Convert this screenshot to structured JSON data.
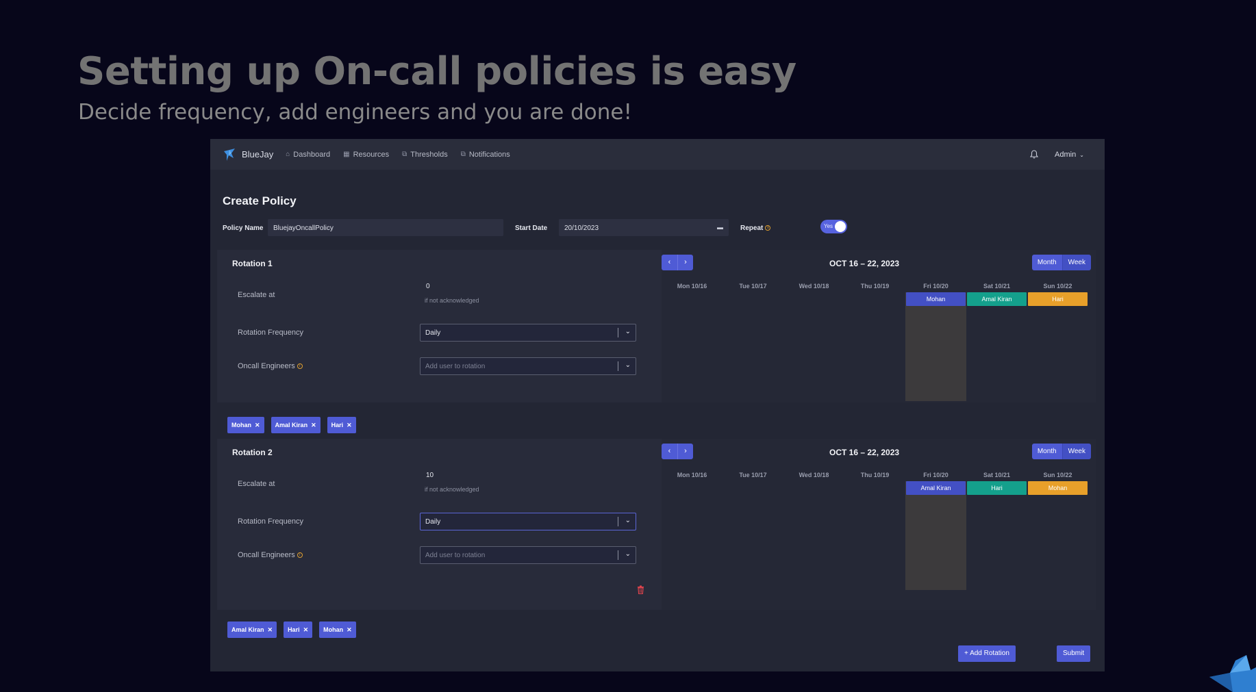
{
  "hero": {
    "title": "Setting up On-call policies is easy",
    "subtitle": "Decide frequency, add engineers and you are done!"
  },
  "nav": {
    "brand": "BlueJay",
    "items": [
      {
        "label": "Dashboard",
        "icon": "home-icon"
      },
      {
        "label": "Resources",
        "icon": "resources-icon"
      },
      {
        "label": "Thresholds",
        "icon": "thresholds-icon"
      },
      {
        "label": "Notifications",
        "icon": "notifications-icon"
      }
    ],
    "user": "Admin"
  },
  "page": {
    "title": "Create Policy"
  },
  "form": {
    "policy_name_label": "Policy Name",
    "policy_name_value": "BluejayOncallPolicy",
    "start_date_label": "Start Date",
    "start_date_value": "20/10/2023",
    "repeat_label": "Repeat",
    "repeat_value": "Yes"
  },
  "labels": {
    "escalate_at": "Escalate at",
    "if_not_ack": "if not acknowledged",
    "rotation_frequency": "Rotation Frequency",
    "oncall_engineers": "Oncall Engineers",
    "add_user_placeholder": "Add user to rotation",
    "month": "Month",
    "week": "Week",
    "prev": "‹",
    "next": "›"
  },
  "calendar": {
    "range": "OCT 16 – 22, 2023",
    "days": [
      "Mon 10/16",
      "Tue 10/17",
      "Wed 10/18",
      "Thu 10/19",
      "Fri 10/20",
      "Sat 10/21",
      "Sun 10/22"
    ]
  },
  "rotations": [
    {
      "title": "Rotation 1",
      "escalate_value": "0",
      "frequency": "Daily",
      "events": [
        {
          "day": "Fri 10/20",
          "name": "Mohan",
          "color": "#4350c4"
        },
        {
          "day": "Sat 10/21",
          "name": "Amal Kiran",
          "color": "#14a08c"
        },
        {
          "day": "Sun 10/22",
          "name": "Hari",
          "color": "#e8a02a"
        }
      ],
      "engineers": [
        "Mohan",
        "Amal Kiran",
        "Hari"
      ]
    },
    {
      "title": "Rotation 2",
      "escalate_value": "10",
      "frequency": "Daily",
      "events": [
        {
          "day": "Fri 10/20",
          "name": "Amal Kiran",
          "color": "#4350c4"
        },
        {
          "day": "Sat 10/21",
          "name": "Hari",
          "color": "#14a08c"
        },
        {
          "day": "Sun 10/22",
          "name": "Mohan",
          "color": "#e8a02a"
        }
      ],
      "engineers": [
        "Amal Kiran",
        "Hari",
        "Mohan"
      ]
    }
  ],
  "actions": {
    "add_rotation": "+ Add Rotation",
    "submit": "Submit"
  },
  "colors": {
    "accent": "#4f5bd5",
    "danger": "#e0444d",
    "warning": "#e0a030"
  }
}
